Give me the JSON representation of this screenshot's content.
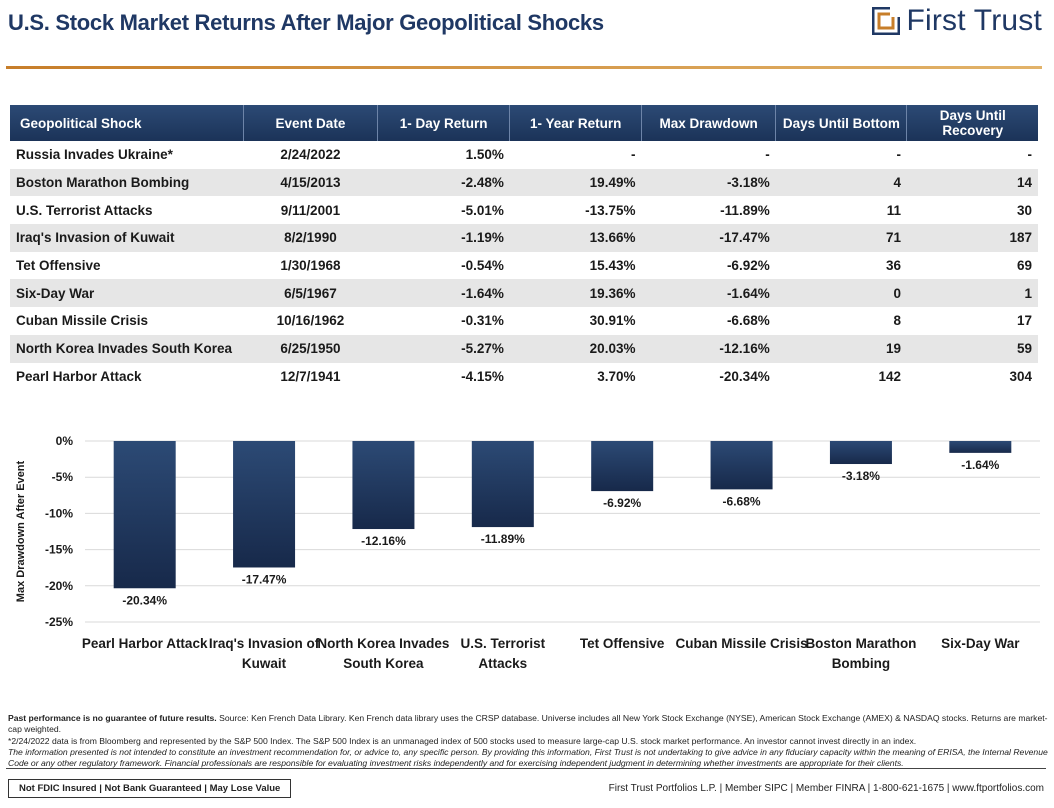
{
  "title": "U.S. Stock Market Returns After Major Geopolitical Shocks",
  "logo": {
    "text": "First Trust",
    "color": "#1f3864",
    "accent": "#c77e2a"
  },
  "table": {
    "columns": [
      "Geopolitical Shock",
      "Event Date",
      "1- Day Return",
      "1- Year Return",
      "Max Drawdown",
      "Days Until Bottom",
      "Days Until Recovery"
    ],
    "rows": [
      [
        "Russia Invades Ukraine*",
        "2/24/2022",
        "1.50%",
        "-",
        "-",
        "-",
        "-"
      ],
      [
        "Boston Marathon Bombing",
        "4/15/2013",
        "-2.48%",
        "19.49%",
        "-3.18%",
        "4",
        "14"
      ],
      [
        "U.S. Terrorist Attacks",
        "9/11/2001",
        "-5.01%",
        "-13.75%",
        "-11.89%",
        "11",
        "30"
      ],
      [
        "Iraq's Invasion of Kuwait",
        "8/2/1990",
        "-1.19%",
        "13.66%",
        "-17.47%",
        "71",
        "187"
      ],
      [
        "Tet Offensive",
        "1/30/1968",
        "-0.54%",
        "15.43%",
        "-6.92%",
        "36",
        "69"
      ],
      [
        "Six-Day War",
        "6/5/1967",
        "-1.64%",
        "19.36%",
        "-1.64%",
        "0",
        "1"
      ],
      [
        "Cuban Missile Crisis",
        "10/16/1962",
        "-0.31%",
        "30.91%",
        "-6.68%",
        "8",
        "17"
      ],
      [
        "North Korea Invades South Korea",
        "6/25/1950",
        "-5.27%",
        "20.03%",
        "-12.16%",
        "19",
        "59"
      ],
      [
        "Pearl Harbor Attack",
        "12/7/1941",
        "-4.15%",
        "3.70%",
        "-20.34%",
        "142",
        "304"
      ]
    ]
  },
  "chart_data": {
    "type": "bar",
    "categories": [
      [
        "Pearl Harbor Attack"
      ],
      [
        "Iraq's Invasion of",
        "Kuwait"
      ],
      [
        "North Korea Invades",
        "South Korea"
      ],
      [
        "U.S. Terrorist",
        "Attacks"
      ],
      [
        "Tet Offensive"
      ],
      [
        "Cuban Missile Crisis"
      ],
      [
        "Boston Marathon",
        "Bombing"
      ],
      [
        "Six-Day War"
      ]
    ],
    "values": [
      -20.34,
      -17.47,
      -12.16,
      -11.89,
      -6.92,
      -6.68,
      -3.18,
      -1.64
    ],
    "value_labels": [
      "-20.34%",
      "-17.47%",
      "-12.16%",
      "-11.89%",
      "-6.92%",
      "-6.68%",
      "-3.18%",
      "-1.64%"
    ],
    "ylabel": "Max Drawdown After Event",
    "ylim": [
      -25,
      0
    ],
    "yticks": [
      0,
      -5,
      -10,
      -15,
      -20,
      -25
    ],
    "ytick_labels": [
      "0%",
      "-5%",
      "-10%",
      "-15%",
      "-20%",
      "-25%"
    ],
    "grid": true,
    "bar_color_top": "#2c4a75",
    "bar_color_bottom": "#17294a"
  },
  "footnotes": {
    "bold_lead": "Past performance is no guarantee of future results.",
    "line1": " Source: Ken French Data Library. Ken French data library uses the CRSP database. Universe includes all New York Stock Exchange (NYSE), American Stock Exchange (AMEX) & NASDAQ stocks. Returns are market-cap weighted.",
    "line2": "*2/24/2022 data is from Bloomberg and represented by the S&P 500 Index. The S&P 500 Index is an unmanaged index of 500 stocks used to measure large-cap U.S. stock market performance. An investor cannot invest directly in an index.",
    "line3": "The information presented is not intended to constitute an investment recommendation for, or advice to, any specific person. By providing this information, First Trust is not undertaking to give advice in any fiduciary capacity within the meaning of ERISA, the Internal Revenue Code or any other regulatory framework. Financial professionals are responsible for evaluating investment risks independently and for exercising independent judgment in determining whether investments are appropriate for their clients."
  },
  "footer": {
    "disclaimer": "Not FDIC Insured | Not Bank Guaranteed | May Lose Value",
    "contact": "First Trust Portfolios L.P. | Member SIPC | Member FINRA | 1-800-621-1675 | www.ftportfolios.com"
  }
}
